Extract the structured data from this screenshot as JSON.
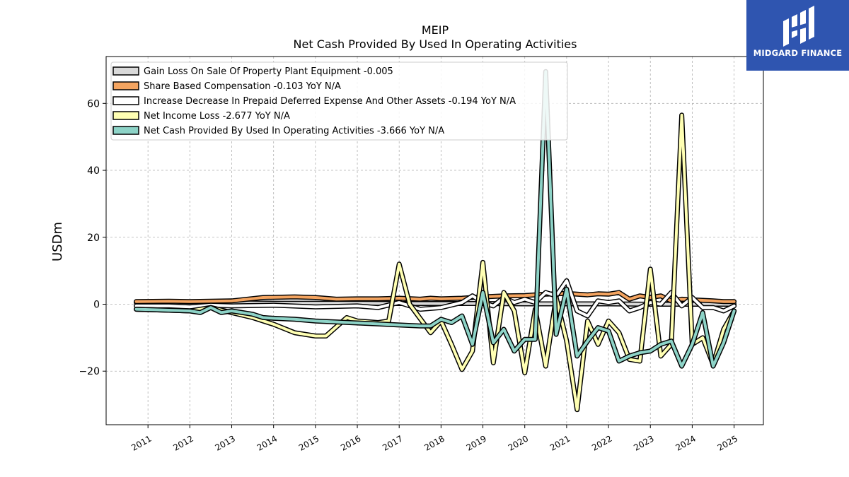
{
  "chart_data": {
    "type": "line",
    "title": "MEIP",
    "subtitle": "Net Cash Provided By Used In Operating Activities",
    "ylabel": "USDm",
    "xlabel": "",
    "xlim": [
      2010.0,
      2025.7
    ],
    "ylim": [
      -36,
      74
    ],
    "x_ticks": [
      2011,
      2012,
      2013,
      2014,
      2015,
      2016,
      2017,
      2018,
      2019,
      2020,
      2021,
      2022,
      2023,
      2024,
      2025
    ],
    "x_tick_labels": [
      "2011",
      "2012",
      "2013",
      "2014",
      "2015",
      "2016",
      "2017",
      "2018",
      "2019",
      "2020",
      "2021",
      "2022",
      "2023",
      "2024",
      "2025"
    ],
    "y_ticks": [
      -20,
      0,
      20,
      40,
      60
    ],
    "y_tick_labels": [
      "−20",
      "0",
      "20",
      "40",
      "60"
    ],
    "grid": true,
    "legend_position": "top-left",
    "series": [
      {
        "name": "Gain Loss On Sale Of Property Plant Equipment",
        "legend": "Gain Loss On Sale Of Property Plant Equipment  -0.005",
        "color": "#d9d9d9",
        "x": [
          2010.72,
          2011.5,
          2012.0,
          2012.5,
          2013.0,
          2014.0,
          2015.0,
          2016.0,
          2017.0,
          2018.0,
          2019.0,
          2020.0,
          2021.0,
          2022.0,
          2023.0,
          2024.0,
          2025.0
        ],
        "y": [
          0.5,
          0.5,
          0.4,
          0.4,
          0.4,
          0.3,
          0.3,
          0.3,
          0.2,
          0.2,
          0.2,
          0.1,
          0.1,
          0.1,
          0.0,
          0.0,
          0.0
        ]
      },
      {
        "name": "Share Based Compensation",
        "legend": "Share Based Compensation  -0.103 YoY N/A",
        "color": "#f4a460",
        "x": [
          2010.72,
          2011.5,
          2012.0,
          2012.5,
          2013.0,
          2013.75,
          2014.5,
          2015.0,
          2015.5,
          2016.0,
          2016.5,
          2017.0,
          2017.5,
          2017.75,
          2018.0,
          2018.5,
          2018.75,
          2019.0,
          2019.5,
          2020.0,
          2020.5,
          2021.0,
          2021.5,
          2021.75,
          2022.0,
          2022.25,
          2022.5,
          2022.75,
          2023.0,
          2023.25,
          2023.5,
          2023.75,
          2024.0,
          2024.5,
          2024.75,
          2025.0
        ],
        "y": [
          0.8,
          0.9,
          0.8,
          0.9,
          1.0,
          2.0,
          2.2,
          2.0,
          1.5,
          1.6,
          1.6,
          1.8,
          1.5,
          1.8,
          1.6,
          1.8,
          2.0,
          2.2,
          2.5,
          2.6,
          3.0,
          3.2,
          2.8,
          3.1,
          3.0,
          3.5,
          1.5,
          2.5,
          2.0,
          2.5,
          1.0,
          1.5,
          1.3,
          1.0,
          0.8,
          0.8
        ]
      },
      {
        "name": "Increase Decrease In Prepaid Deferred Expense And Other Assets",
        "legend": "Increase Decrease In Prepaid Deferred Expense And Other Assets  -0.194 YoY N/A",
        "color": "#ffffff",
        "x": [
          2010.72,
          2011.5,
          2012.0,
          2012.5,
          2013.0,
          2014.0,
          2015.0,
          2016.0,
          2016.5,
          2017.0,
          2017.5,
          2018.0,
          2018.5,
          2018.75,
          2019.0,
          2019.25,
          2019.5,
          2019.75,
          2020.0,
          2020.25,
          2020.5,
          2020.75,
          2021.0,
          2021.25,
          2021.5,
          2021.75,
          2022.0,
          2022.25,
          2022.5,
          2022.75,
          2023.0,
          2023.25,
          2023.5,
          2023.75,
          2024.0,
          2024.25,
          2024.5,
          2024.75,
          2025.0
        ],
        "y": [
          -0.5,
          -0.5,
          -0.8,
          -0.3,
          -0.5,
          -0.3,
          -0.8,
          -0.5,
          -1.0,
          0.5,
          -1.5,
          -1.0,
          0.5,
          2.5,
          0.5,
          -0.5,
          2.0,
          0.5,
          1.5,
          0.5,
          3.5,
          2.5,
          7.0,
          -2.0,
          -3.5,
          1.0,
          0.5,
          1.0,
          -2.0,
          -1.0,
          0.5,
          0.0,
          3.5,
          -0.5,
          2.0,
          -1.0,
          -1.0,
          -2.0,
          -0.5
        ]
      },
      {
        "name": "Net Income Loss",
        "legend": "Net Income Loss  -2.677 YoY N/A",
        "color": "#ffffb3",
        "x": [
          2010.72,
          2011.5,
          2012.0,
          2012.25,
          2012.5,
          2013.0,
          2013.5,
          2014.0,
          2014.5,
          2015.0,
          2015.25,
          2015.75,
          2016.0,
          2016.5,
          2016.75,
          2017.0,
          2017.25,
          2017.75,
          2018.0,
          2018.25,
          2018.5,
          2018.75,
          2019.0,
          2019.25,
          2019.5,
          2019.75,
          2020.0,
          2020.25,
          2020.5,
          2020.75,
          2021.0,
          2021.25,
          2021.5,
          2021.75,
          2022.0,
          2022.25,
          2022.5,
          2022.75,
          2023.0,
          2023.25,
          2023.5,
          2023.75,
          2024.0,
          2024.25,
          2024.5,
          2024.75,
          2025.0
        ],
        "y": [
          -1.5,
          -1.8,
          -2.0,
          -1.5,
          -1.0,
          -2.5,
          -4.0,
          -6.0,
          -8.5,
          -9.5,
          -9.5,
          -4.0,
          -5.0,
          -5.5,
          -5.0,
          12.0,
          0.0,
          -8.5,
          -5.0,
          -12.0,
          -19.5,
          -14.0,
          12.5,
          -17.5,
          3.5,
          -2.0,
          -20.5,
          -1.5,
          -18.5,
          2.0,
          -11.0,
          -31.5,
          -5.0,
          -12.0,
          -5.0,
          -8.5,
          -16.5,
          -17.0,
          10.5,
          -15.5,
          -12.0,
          56.5,
          -12.0,
          -10.0,
          -18.0,
          -7.5,
          -2.0
        ]
      },
      {
        "name": "Net Cash Provided By Used In Operating Activities",
        "legend": "Net Cash Provided By Used In Operating Activities  -3.666 YoY N/A",
        "color": "#8dd3c7",
        "x": [
          2010.72,
          2011.5,
          2012.0,
          2012.25,
          2012.5,
          2012.75,
          2013.0,
          2013.25,
          2013.5,
          2013.75,
          2014.0,
          2014.5,
          2015.0,
          2015.5,
          2016.0,
          2016.5,
          2017.0,
          2017.5,
          2017.75,
          2018.0,
          2018.25,
          2018.5,
          2018.75,
          2019.0,
          2019.25,
          2019.5,
          2019.75,
          2020.0,
          2020.25,
          2020.5,
          2020.75,
          2021.0,
          2021.25,
          2021.5,
          2021.75,
          2022.0,
          2022.25,
          2022.5,
          2022.75,
          2023.0,
          2023.25,
          2023.5,
          2023.75,
          2024.0,
          2024.25,
          2024.5,
          2024.75,
          2025.0
        ],
        "y": [
          -1.5,
          -1.8,
          -2.0,
          -2.5,
          -1.0,
          -2.5,
          -2.0,
          -2.5,
          -3.0,
          -4.0,
          -4.2,
          -4.5,
          -5.0,
          -5.3,
          -5.6,
          -5.9,
          -6.2,
          -6.5,
          -6.5,
          -4.5,
          -5.5,
          -3.5,
          -12.0,
          3.5,
          -11.5,
          -7.5,
          -14.0,
          -10.5,
          -10.5,
          69.5,
          -9.0,
          4.5,
          -15.5,
          -11.0,
          -7.0,
          -8.0,
          -17.0,
          -15.5,
          -14.5,
          -14.0,
          -12.0,
          -11.0,
          -18.5,
          -12.0,
          -2.5,
          -18.5,
          -11.5,
          -2.0
        ]
      }
    ]
  },
  "logo": {
    "text": "MIDGARD FINANCE",
    "bg_color": "#2f55b0"
  }
}
